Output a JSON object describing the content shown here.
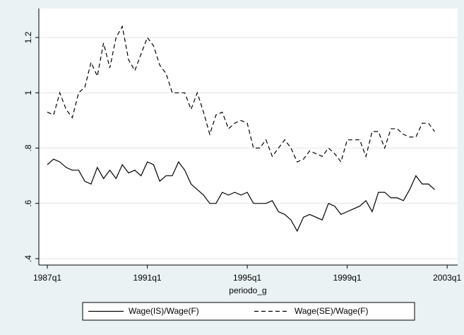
{
  "chart_data": {
    "type": "line",
    "x_label": "periodo_g",
    "x": [
      1987,
      1987.25,
      1987.5,
      1987.75,
      1988,
      1988.25,
      1988.5,
      1988.75,
      1989,
      1989.25,
      1989.5,
      1989.75,
      1990,
      1990.25,
      1990.5,
      1990.75,
      1991,
      1991.25,
      1991.5,
      1991.75,
      1992,
      1992.25,
      1992.5,
      1992.75,
      1993,
      1993.25,
      1993.5,
      1993.75,
      1994,
      1994.25,
      1994.5,
      1994.75,
      1995,
      1995.25,
      1995.5,
      1995.75,
      1996,
      1996.25,
      1996.5,
      1996.75,
      1997,
      1997.25,
      1997.5,
      1997.75,
      1998,
      1998.25,
      1998.5,
      1998.75,
      1999,
      1999.25,
      1999.5,
      1999.75,
      2000,
      2000.25,
      2000.5,
      2000.75,
      2001,
      2001.25,
      2001.5,
      2001.75,
      2002,
      2002.25,
      2002.5
    ],
    "series": [
      {
        "name": "Wage(IS)/Wage(F)",
        "color": "#000000",
        "dash": "none",
        "values": [
          0.74,
          0.76,
          0.75,
          0.73,
          0.72,
          0.72,
          0.68,
          0.67,
          0.73,
          0.69,
          0.72,
          0.69,
          0.74,
          0.71,
          0.72,
          0.7,
          0.75,
          0.74,
          0.68,
          0.7,
          0.7,
          0.75,
          0.72,
          0.67,
          0.65,
          0.63,
          0.6,
          0.6,
          0.64,
          0.63,
          0.64,
          0.63,
          0.64,
          0.6,
          0.6,
          0.6,
          0.61,
          0.57,
          0.56,
          0.54,
          0.5,
          0.55,
          0.56,
          0.55,
          0.54,
          0.6,
          0.59,
          0.56,
          0.57,
          0.58,
          0.59,
          0.61,
          0.57,
          0.64,
          0.64,
          0.62,
          0.62,
          0.61,
          0.65,
          0.7,
          0.67,
          0.67,
          0.65
        ]
      },
      {
        "name": "Wage(SE)/Wage(F)",
        "color": "#000000",
        "dash": "6 4",
        "values": [
          0.93,
          0.92,
          1.0,
          0.94,
          0.91,
          1.0,
          1.02,
          1.11,
          1.06,
          1.18,
          1.09,
          1.2,
          1.24,
          1.12,
          1.08,
          1.14,
          1.2,
          1.17,
          1.1,
          1.07,
          1.0,
          1.0,
          1.0,
          0.94,
          1.0,
          0.93,
          0.85,
          0.92,
          0.93,
          0.87,
          0.89,
          0.9,
          0.89,
          0.8,
          0.8,
          0.83,
          0.77,
          0.8,
          0.83,
          0.8,
          0.75,
          0.76,
          0.79,
          0.78,
          0.77,
          0.8,
          0.78,
          0.75,
          0.83,
          0.83,
          0.83,
          0.77,
          0.86,
          0.86,
          0.8,
          0.87,
          0.87,
          0.85,
          0.84,
          0.84,
          0.89,
          0.89,
          0.86
        ]
      }
    ],
    "xlim": [
      1986.66,
      2003.42
    ],
    "xticks": [
      {
        "value": 1987,
        "label": "1987q1"
      },
      {
        "value": 1991,
        "label": "1991q1"
      },
      {
        "value": 1995,
        "label": "1995q1"
      },
      {
        "value": 1999,
        "label": "1999q1"
      },
      {
        "value": 2003,
        "label": "2003q1"
      }
    ],
    "ylim": [
      0.377,
      1.305
    ],
    "yticks": [
      {
        "value": 0.4,
        "label": ".4"
      },
      {
        "value": 0.6,
        "label": ".6"
      },
      {
        "value": 0.8,
        "label": ".8"
      },
      1,
      1.2
    ],
    "grid": true,
    "legend": "bottom"
  }
}
